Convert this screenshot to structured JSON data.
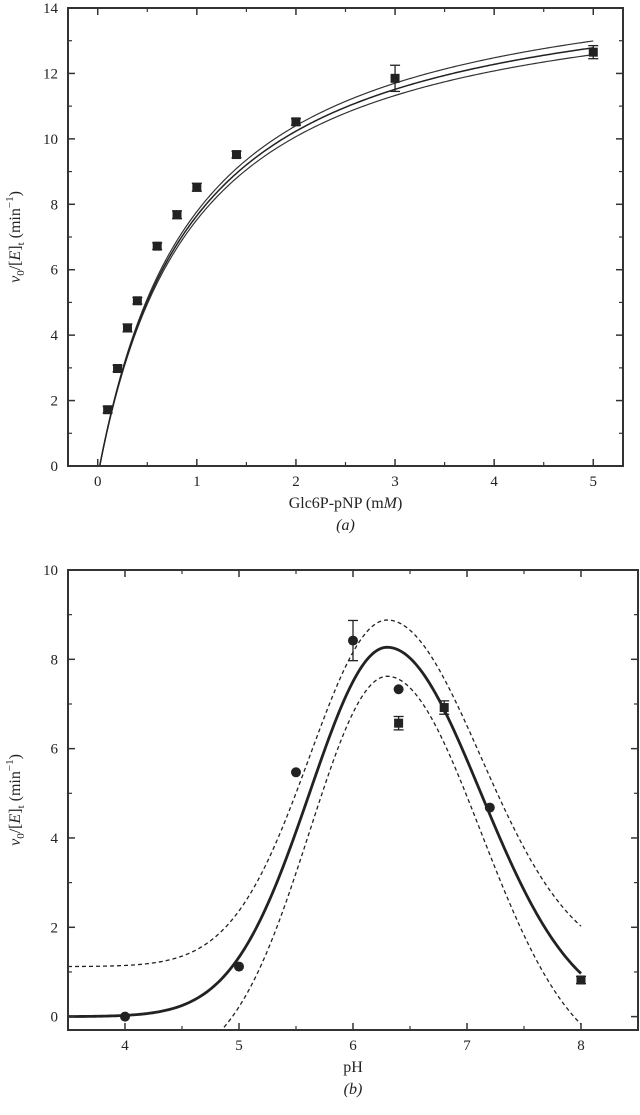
{
  "chart_data": [
    {
      "panel": "(a)",
      "type": "scatter",
      "xlabel": "Glc6P-pNP (mM)",
      "ylabel": "v0/[E]t (min−1)",
      "xlim": [
        -0.3,
        5.3
      ],
      "ylim": [
        0,
        14
      ],
      "xticks": [
        0,
        1,
        2,
        3,
        4,
        5
      ],
      "yticks": [
        0,
        2,
        4,
        6,
        8,
        10,
        12,
        14
      ],
      "grid": false,
      "series": [
        {
          "marker": "square",
          "x": [
            0.1,
            0.2,
            0.3,
            0.4,
            0.6,
            0.8,
            1.0,
            1.4,
            2.0,
            3.0,
            5.0
          ],
          "y": [
            1.72,
            2.98,
            4.22,
            5.05,
            6.72,
            7.68,
            8.52,
            9.52,
            10.52,
            11.85,
            12.65
          ],
          "yerr": [
            0.1,
            0.1,
            0.12,
            0.1,
            0.1,
            0.12,
            0.12,
            0.1,
            0.1,
            0.4,
            0.2
          ]
        }
      ],
      "fit": {
        "model": "Michaelis–Menten",
        "kcat": 15.3,
        "Km": 0.98,
        "x_offset": 0.02,
        "band_kcat": [
          15.05,
          15.55
        ]
      }
    },
    {
      "panel": "(b)",
      "type": "scatter",
      "xlabel": "pH",
      "ylabel": "v0/[E]t (min−1)",
      "xlim": [
        3.5,
        8.5
      ],
      "ylim": [
        -0.3,
        10
      ],
      "xticks": [
        4,
        5,
        6,
        7,
        8
      ],
      "yticks": [
        0,
        2,
        4,
        6,
        8,
        10
      ],
      "grid": false,
      "series": [
        {
          "marker": "circle",
          "x": [
            4.0,
            5.0,
            5.5,
            6.0,
            6.4,
            7.2
          ],
          "y": [
            0.0,
            1.12,
            5.47,
            8.42,
            7.33,
            4.68
          ],
          "yerr": [
            0,
            0,
            0,
            0.45,
            0,
            0
          ]
        },
        {
          "marker": "square",
          "x": [
            6.4,
            6.8,
            8.0
          ],
          "y": [
            6.57,
            6.92,
            0.82
          ],
          "yerr": [
            0.15,
            0.15,
            0.08
          ]
        }
      ],
      "fit": {
        "model": "bell",
        "center": 6.3,
        "peak": 8.27,
        "sigma_left": 0.68,
        "sigma_right": 0.82,
        "upper_band": {
          "peak": 8.88,
          "baseline": 1.12
        },
        "lower_band": {
          "peak": 7.62,
          "baseline": -1.2
        }
      }
    }
  ]
}
